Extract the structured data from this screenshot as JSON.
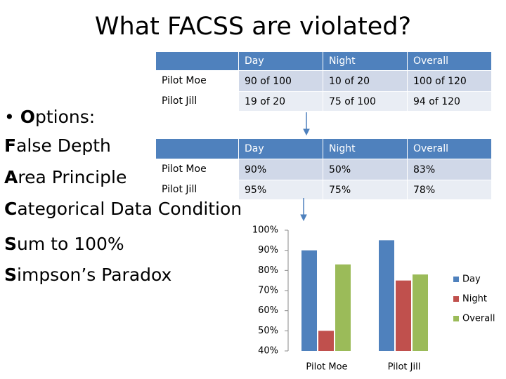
{
  "title": "What FACSS are violated?",
  "options": {
    "heading": "Options:",
    "items": [
      "False Depth",
      "Area Principle",
      "Categorical Data Condition",
      "Sum to 100%",
      "Simpson’s Paradox"
    ]
  },
  "table_counts": {
    "header": [
      "Day",
      "Night",
      "Overall"
    ],
    "rows": [
      [
        "Pilot Moe",
        "90 of 100",
        "10 of 20",
        "100 of 120"
      ],
      [
        "Pilot Jill",
        "19 of 20",
        "75 of 100",
        "94 of 120"
      ]
    ]
  },
  "table_percent": {
    "header": [
      "Day",
      "Night",
      "Overall"
    ],
    "rows": [
      [
        "Pilot Moe",
        "90%",
        "50%",
        "83%"
      ],
      [
        "Pilot Jill",
        "95%",
        "75%",
        "78%"
      ]
    ]
  },
  "chart_data": {
    "type": "bar",
    "categories": [
      "Pilot Moe",
      "Pilot Jill"
    ],
    "series": [
      {
        "name": "Day",
        "color": "#4f81bd",
        "values": [
          90,
          95
        ]
      },
      {
        "name": "Night",
        "color": "#c0504d",
        "values": [
          50,
          75
        ]
      },
      {
        "name": "Overall",
        "color": "#9bbb59",
        "values": [
          83,
          78
        ]
      }
    ],
    "ylim": [
      40,
      100
    ],
    "yticks": [
      {
        "value": 40,
        "label": "40%"
      },
      {
        "value": 50,
        "label": "50%"
      },
      {
        "value": 60,
        "label": "60%"
      },
      {
        "value": 70,
        "label": "70%"
      },
      {
        "value": 80,
        "label": "80%"
      },
      {
        "value": 90,
        "label": "90%"
      },
      {
        "value": 100,
        "label": "100%"
      }
    ],
    "grid": false,
    "legend": "right"
  }
}
